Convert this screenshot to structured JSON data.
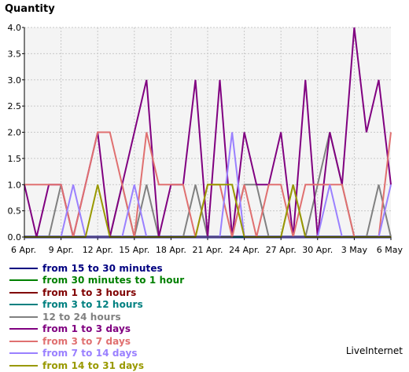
{
  "chart_data": {
    "type": "line",
    "title": "Quantity",
    "ylim": [
      0,
      4
    ],
    "yticks": [
      "0.0",
      "0.5",
      "1.0",
      "1.5",
      "2.0",
      "2.5",
      "3.0",
      "3.5",
      "4.0"
    ],
    "xticks": [
      "6 Apr.",
      "9 Apr.",
      "12 Apr.",
      "15 Apr.",
      "18 Apr.",
      "21 Apr.",
      "24 Apr.",
      "27 Apr.",
      "30 Apr.",
      "3 May",
      "6 May"
    ],
    "n_points": 31,
    "grid": true,
    "legend_position": "bottom-left",
    "series": [
      {
        "name": "from 15 to 30 minutes",
        "color": "#000080",
        "values": [
          0,
          0,
          0,
          0,
          0,
          0,
          0,
          0,
          0,
          0,
          0,
          0,
          0,
          0,
          0,
          0,
          0,
          0,
          0,
          0,
          0,
          0,
          0,
          0,
          0,
          0,
          0,
          0,
          0,
          0,
          0
        ]
      },
      {
        "name": "from 30 minutes to 1 hour",
        "color": "#008000",
        "values": [
          0,
          0,
          0,
          0,
          0,
          0,
          0,
          0,
          0,
          0,
          0,
          0,
          0,
          0,
          0,
          0,
          0,
          0,
          0,
          0,
          0,
          0,
          0,
          0,
          0,
          0,
          0,
          0,
          0,
          0,
          0
        ]
      },
      {
        "name": "from 1 to 3 hours",
        "color": "#800000",
        "values": [
          0,
          0,
          0,
          0,
          0,
          0,
          0,
          0,
          0,
          0,
          0,
          0,
          0,
          0,
          0,
          0,
          0,
          0,
          0,
          0,
          0,
          0,
          0,
          0,
          0,
          0,
          0,
          0,
          0,
          0,
          0
        ]
      },
      {
        "name": "from 3 to 12 hours",
        "color": "#008080",
        "values": [
          0,
          0,
          0,
          0,
          0,
          0,
          0,
          0,
          0,
          0,
          0,
          0,
          0,
          0,
          0,
          0,
          0,
          0,
          0,
          0,
          0,
          0,
          0,
          0,
          0,
          0,
          0,
          0,
          0,
          0,
          0
        ]
      },
      {
        "name": "12 to 24 hours",
        "color": "#808080",
        "values": [
          0,
          0,
          0,
          1,
          0,
          0,
          0,
          0,
          1,
          0,
          1,
          0,
          0,
          0,
          1,
          0,
          0,
          0,
          1,
          1,
          0,
          0,
          1,
          0,
          1,
          2,
          1,
          0,
          0,
          1,
          0
        ]
      },
      {
        "name": "from 1 to 3 days",
        "color": "#800080",
        "values": [
          1,
          0,
          1,
          1,
          0,
          1,
          2,
          0,
          1,
          2,
          3,
          0,
          1,
          1,
          3,
          0,
          3,
          0,
          2,
          1,
          1,
          2,
          0,
          3,
          0,
          2,
          1,
          4,
          2,
          3,
          1
        ]
      },
      {
        "name": "from 3 to 7 days",
        "color": "#e07070",
        "values": [
          1,
          1,
          1,
          1,
          0,
          1,
          2,
          2,
          1,
          0,
          2,
          1,
          1,
          1,
          0,
          1,
          1,
          0,
          1,
          0,
          1,
          1,
          0,
          1,
          1,
          1,
          1,
          0,
          0,
          0,
          2
        ]
      },
      {
        "name": "from 7 to 14 days",
        "color": "#9a80ff",
        "values": [
          0,
          0,
          0,
          0,
          1,
          0,
          0,
          0,
          0,
          1,
          0,
          0,
          0,
          0,
          0,
          0,
          0,
          2,
          0,
          0,
          0,
          0,
          0,
          0,
          0,
          1,
          0,
          0,
          0,
          0,
          1
        ]
      },
      {
        "name": "from 14 to 31 days",
        "color": "#999900",
        "values": [
          0,
          0,
          0,
          0,
          0,
          0,
          1,
          0,
          0,
          0,
          0,
          0,
          0,
          0,
          0,
          1,
          1,
          1,
          0,
          0,
          0,
          0,
          1,
          0,
          0,
          0,
          0,
          0,
          0,
          0,
          0
        ]
      }
    ]
  },
  "branding": "LiveInternet"
}
